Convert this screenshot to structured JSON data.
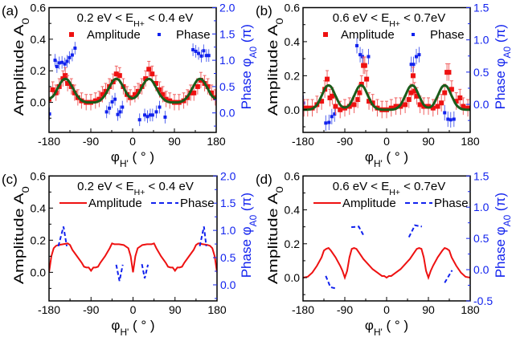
{
  "chart_data": [
    {
      "panel_label": "(a)",
      "type": "scatter",
      "title": {
        "main": "0.2 eV < E",
        "sub": "H+",
        "tail": " < 0.4 eV"
      },
      "xlabel": {
        "main": "φ",
        "sub": "H'",
        "tail": " ( ° )"
      },
      "ylabel_left": {
        "main": "Amplitude A",
        "sub": "0"
      },
      "ylabel_right": {
        "main": "Phase φ",
        "sub": "A0",
        "tail": " (π)"
      },
      "xlim": [
        -180,
        180
      ],
      "xticks": [
        -180,
        -90,
        0,
        90,
        180
      ],
      "ylim_left": [
        -0.19,
        0.6
      ],
      "yticks_left": [
        "0.0",
        "0.2",
        "0.4",
        "0.6"
      ],
      "ylim_right": [
        -0.37,
        2.0
      ],
      "yticks_right": [
        "0.0",
        "0.5",
        "1.0",
        "1.5",
        "2.0"
      ],
      "legend": {
        "style": "markers",
        "items": [
          "Amplitude",
          "Phase"
        ]
      },
      "colors": {
        "amplitude": "#ee1111",
        "phase": "#1122ee",
        "fit": "#1a5c1a"
      },
      "amplitude": {
        "yerr": 0.05,
        "x": [
          -180,
          -172,
          -165,
          -158,
          -150,
          -145,
          -140,
          -132,
          -125,
          -118,
          -110,
          -100,
          -90,
          -80,
          -72,
          -65,
          -58,
          -50,
          -42,
          -35,
          -28,
          -20,
          -12,
          -5,
          5,
          12,
          20,
          28,
          35,
          42,
          50,
          58,
          65,
          72,
          80,
          90,
          100,
          110,
          118,
          125,
          132,
          140,
          147,
          155,
          162,
          170,
          178
        ],
        "y": [
          0.02,
          0.08,
          0.06,
          0.1,
          0.15,
          0.17,
          0.12,
          0.1,
          0.06,
          0.03,
          0.01,
          0.0,
          0.0,
          0.01,
          0.02,
          0.05,
          0.07,
          0.1,
          0.13,
          0.18,
          0.17,
          0.1,
          0.05,
          0.03,
          0.05,
          0.07,
          0.1,
          0.15,
          0.21,
          0.18,
          0.12,
          0.08,
          0.05,
          0.02,
          0.01,
          0.0,
          0.0,
          0.01,
          0.03,
          0.06,
          0.06,
          0.1,
          0.14,
          0.12,
          0.1,
          0.06,
          0.03
        ]
      },
      "phase": {
        "yerr": 0.12,
        "x": [
          -179,
          -167,
          -163,
          -158,
          -152,
          -146,
          -141,
          -136,
          -130,
          -124,
          -56,
          -50,
          -44,
          -38,
          -32,
          -27,
          -22,
          15,
          26,
          32,
          38,
          43,
          51,
          58,
          70,
          130,
          136,
          142,
          148,
          153,
          159,
          164
        ],
        "y": [
          -0.02,
          1.0,
          0.88,
          0.95,
          0.96,
          0.93,
          0.98,
          1.05,
          1.1,
          1.23,
          0.02,
          0.09,
          0.21,
          0.26,
          -0.03,
          0.02,
          0.11,
          -0.13,
          -0.04,
          -0.07,
          -0.04,
          -0.04,
          0.02,
          0.11,
          -0.08,
          1.2,
          1.17,
          1.13,
          1.08,
          1.18,
          1.09,
          1.09
        ]
      },
      "fit": {
        "x_start": -180,
        "x_step": 10,
        "y": [
          0.02,
          0.044,
          0.097,
          0.143,
          0.143,
          0.097,
          0.044,
          0.013,
          0.001,
          0,
          0.001,
          0.013,
          0.044,
          0.097,
          0.143,
          0.143,
          0.097,
          0.045,
          0.026,
          0.045,
          0.097,
          0.143,
          0.143,
          0.097,
          0.044,
          0.013,
          0.001,
          0,
          0.001,
          0.013,
          0.044,
          0.097,
          0.143,
          0.143,
          0.097,
          0.044,
          0.02
        ]
      }
    },
    {
      "panel_label": "(b)",
      "type": "scatter",
      "title": {
        "main": "0.6 eV < E",
        "sub": "H+",
        "tail": " < 0.7eV"
      },
      "xlabel": {
        "main": "φ",
        "sub": "H'",
        "tail": " ( ° )"
      },
      "ylabel_left": {
        "main": "Amplitude A",
        "sub": "0"
      },
      "ylabel_right": {
        "main": "Phase φ",
        "sub": "A0",
        "tail": " (π)"
      },
      "xlim": [
        -180,
        180
      ],
      "xticks": [
        -180,
        -90,
        0,
        90,
        180
      ],
      "ylim_left": [
        -0.133,
        0.6
      ],
      "yticks_left": [
        "0.0",
        "0.2",
        "0.4",
        "0.6"
      ],
      "ylim_right": [
        -0.435,
        1.5
      ],
      "yticks_right": [
        "0.0",
        "0.5",
        "1.0",
        "1.5"
      ],
      "legend": {
        "style": "markers",
        "items": [
          "Amplitude",
          "Phase"
        ]
      },
      "colors": {
        "amplitude": "#ee1111",
        "phase": "#1122ee",
        "fit": "#1a5c1a"
      },
      "amplitude": {
        "yerr": 0.05,
        "x": [
          -178,
          -170,
          -160,
          -150,
          -140,
          -133,
          -128,
          -122,
          -117,
          -110,
          -100,
          -90,
          -80,
          -70,
          -62,
          -58,
          -54,
          -50,
          -47,
          -43,
          -38,
          -30,
          -20,
          -10,
          0,
          10,
          20,
          30,
          40,
          48,
          53,
          57,
          60,
          65,
          72,
          80,
          90,
          100,
          110,
          118,
          125,
          130,
          134,
          140,
          150,
          158,
          165,
          175
        ],
        "y": [
          0.01,
          0.01,
          0.01,
          0.03,
          0.05,
          0.12,
          0.18,
          0.07,
          0.08,
          0.02,
          0.0,
          0.01,
          0.02,
          0.03,
          0.06,
          0.1,
          0.15,
          0.26,
          0.26,
          0.18,
          0.05,
          0.04,
          0.01,
          0.0,
          0.0,
          0.01,
          0.02,
          0.02,
          0.03,
          0.06,
          0.1,
          0.2,
          0.11,
          0.08,
          0.03,
          0.02,
          0.02,
          0.01,
          0.02,
          0.04,
          0.1,
          0.22,
          0.22,
          0.12,
          0.05,
          0.07,
          0.02,
          0.01
        ]
      },
      "phase": {
        "yerr": 0.12,
        "x": [
          -179,
          -131,
          -124,
          -118,
          -112,
          -64,
          -57,
          -52,
          -39,
          53,
          58,
          64,
          70,
          125,
          132,
          138,
          145
        ],
        "y": [
          0.02,
          -0.29,
          -0.28,
          -0.19,
          -0.15,
          0.91,
          0.77,
          0.74,
          0.74,
          0.62,
          0.62,
          0.74,
          0.77,
          -0.13,
          -0.23,
          -0.24,
          -0.23
        ]
      },
      "fit": {
        "x_start": -180,
        "x_step": 10,
        "y": [
          0,
          0.001,
          0.006,
          0.029,
          0.082,
          0.136,
          0.136,
          0.082,
          0.029,
          0.013,
          0.029,
          0.082,
          0.136,
          0.136,
          0.082,
          0.029,
          0.006,
          0.001,
          0,
          0.001,
          0.006,
          0.029,
          0.082,
          0.136,
          0.136,
          0.082,
          0.029,
          0.013,
          0.029,
          0.082,
          0.136,
          0.136,
          0.082,
          0.029,
          0.006,
          0.001,
          0
        ]
      }
    },
    {
      "panel_label": "(c)",
      "type": "line",
      "title": {
        "main": "0.2 eV < E",
        "sub": "H+",
        "tail": " < 0.4 eV"
      },
      "xlabel": {
        "main": "φ",
        "sub": "H'",
        "tail": " ( ° )"
      },
      "ylabel_left": {
        "main": "Amplitude A",
        "sub": "0"
      },
      "ylabel_right": {
        "main": "Phase φ",
        "sub": "A0",
        "tail": " (π)"
      },
      "xlim": [
        -180,
        180
      ],
      "xticks": [
        -180,
        -90,
        0,
        90,
        180
      ],
      "ylim_left": [
        -0.178,
        0.6
      ],
      "yticks_left": [
        "0.0",
        "0.2",
        "0.4",
        "0.6"
      ],
      "ylim_right": [
        -0.295,
        2.0
      ],
      "yticks_right": [
        "0.0",
        "0.5",
        "1.0",
        "1.5",
        "2.0"
      ],
      "legend": {
        "style": "lines",
        "items": [
          "Amplitude",
          "Phase"
        ]
      },
      "colors": {
        "amplitude": "#ee1111",
        "phase": "#1122ee"
      },
      "amplitude": {
        "x": [
          -180,
          -175,
          -170,
          -165,
          -160,
          -150,
          -140,
          -135,
          -130,
          -120,
          -110,
          -105,
          -100,
          -95,
          -90,
          -85,
          -80,
          -75,
          -70,
          -60,
          -50,
          -45,
          -40,
          -30,
          -20,
          -10,
          -5,
          0,
          5,
          10,
          20,
          30,
          40,
          45,
          50,
          60,
          70,
          75,
          80,
          85,
          90,
          95,
          100,
          105,
          110,
          120,
          130,
          135,
          140,
          150,
          160,
          165,
          170,
          175,
          180
        ],
        "y": [
          0.0,
          0.1,
          0.15,
          0.165,
          0.17,
          0.175,
          0.18,
          0.17,
          0.14,
          0.1,
          0.06,
          0.035,
          0.03,
          0.03,
          0.01,
          0.03,
          0.03,
          0.035,
          0.06,
          0.1,
          0.15,
          0.18,
          0.175,
          0.175,
          0.17,
          0.15,
          0.1,
          0.0,
          0.1,
          0.15,
          0.17,
          0.175,
          0.175,
          0.18,
          0.15,
          0.1,
          0.06,
          0.035,
          0.03,
          0.03,
          0.01,
          0.03,
          0.03,
          0.035,
          0.06,
          0.1,
          0.14,
          0.17,
          0.18,
          0.175,
          0.17,
          0.165,
          0.15,
          0.1,
          0.0
        ]
      },
      "phase_segments": [
        {
          "x": [
            -160,
            -149,
            -142
          ],
          "y": [
            0.71,
            1.07,
            0.71
          ]
        },
        {
          "x": [
            -36,
            -29,
            -22
          ],
          "y": [
            0.37,
            0.07,
            0.37
          ]
        },
        {
          "x": [
            19,
            25,
            32
          ],
          "y": [
            0.38,
            0.12,
            0.37
          ]
        },
        {
          "x": [
            143,
            152,
            157
          ],
          "y": [
            0.71,
            1.07,
            0.71
          ]
        }
      ]
    },
    {
      "panel_label": "(d)",
      "type": "line",
      "title": {
        "main": "0.6 eV < E",
        "sub": "H+",
        "tail": " < 0.7eV"
      },
      "xlabel": {
        "main": "φ",
        "sub": "H'",
        "tail": " ( ° )"
      },
      "ylabel_left": {
        "main": "Amplitude A",
        "sub": "0"
      },
      "ylabel_right": {
        "main": "Phase φ",
        "sub": "A0",
        "tail": " (π)"
      },
      "xlim": [
        -180,
        180
      ],
      "xticks": [
        -180,
        -90,
        0,
        90,
        180
      ],
      "ylim_left": [
        -0.137,
        0.6
      ],
      "yticks_left": [
        "0.0",
        "0.2",
        "0.4",
        "0.6"
      ],
      "ylim_right": [
        -0.5,
        1.5
      ],
      "yticks_right": [
        "-0.5",
        "0.0",
        "0.5",
        "1.0",
        "1.5"
      ],
      "legend": {
        "style": "lines",
        "items": [
          "Amplitude",
          "Phase"
        ]
      },
      "colors": {
        "amplitude": "#ee1111",
        "phase": "#1122ee"
      },
      "amplitude": {
        "x": [
          -180,
          -170,
          -160,
          -150,
          -140,
          -135,
          -130,
          -125,
          -120,
          -110,
          -100,
          -95,
          -90,
          -85,
          -80,
          -75,
          -70,
          -65,
          -60,
          -50,
          -40,
          -30,
          -20,
          -10,
          -5,
          0,
          5,
          10,
          20,
          30,
          40,
          50,
          60,
          65,
          70,
          75,
          80,
          85,
          90,
          95,
          100,
          110,
          120,
          125,
          130,
          135,
          140,
          150,
          160,
          170,
          180
        ],
        "y": [
          0.0,
          0.005,
          0.03,
          0.07,
          0.12,
          0.16,
          0.17,
          0.175,
          0.16,
          0.12,
          0.07,
          0.04,
          0.0,
          0.04,
          0.12,
          0.17,
          0.175,
          0.17,
          0.15,
          0.11,
          0.08,
          0.05,
          0.03,
          0.01,
          0.01,
          0.0,
          0.01,
          0.01,
          0.03,
          0.05,
          0.08,
          0.11,
          0.15,
          0.17,
          0.175,
          0.17,
          0.12,
          0.04,
          0.0,
          0.04,
          0.07,
          0.12,
          0.16,
          0.175,
          0.17,
          0.16,
          0.12,
          0.07,
          0.03,
          0.005,
          0.0
        ]
      },
      "phase_segments": [
        {
          "x": [
            -131,
            -121,
            -110
          ],
          "y": [
            -0.1,
            -0.28,
            -0.3
          ]
        },
        {
          "x": [
            -76,
            -60,
            -49
          ],
          "y": [
            0.68,
            0.69,
            0.54
          ]
        },
        {
          "x": [
            48,
            61,
            76
          ],
          "y": [
            0.52,
            0.71,
            0.69
          ]
        },
        {
          "x": [
            125,
            141
          ],
          "y": [
            -0.21,
            -0.01
          ]
        }
      ]
    }
  ]
}
